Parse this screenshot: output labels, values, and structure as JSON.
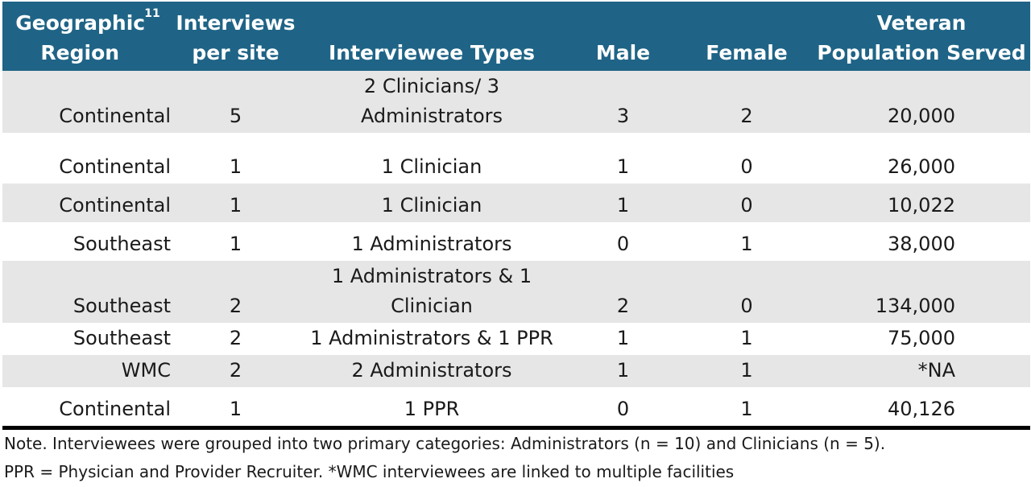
{
  "table": {
    "headers": {
      "region": "Geographic Region",
      "region_sup": "11",
      "interviews": "Interviews per site",
      "types": "Interviewee Types",
      "male": "Male",
      "female": "Female",
      "population": "Veteran Population Served"
    },
    "rows": [
      {
        "region": "Continental",
        "interviews": "5",
        "types": "2 Clinicians/ 3 Administrators",
        "male": "3",
        "female": "2",
        "population": "20,000"
      },
      {
        "region": "Continental",
        "interviews": "1",
        "types": "1 Clinician",
        "male": "1",
        "female": "0",
        "population": "26,000"
      },
      {
        "region": "Continental",
        "interviews": "1",
        "types": "1 Clinician",
        "male": "1",
        "female": "0",
        "population": "10,022"
      },
      {
        "region": "Southeast",
        "interviews": "1",
        "types": "1 Administrators",
        "male": "0",
        "female": "1",
        "population": "38,000"
      },
      {
        "region": "Southeast",
        "interviews": "2",
        "types": "1 Administrators & 1 Clinician",
        "male": "2",
        "female": "0",
        "population": "134,000"
      },
      {
        "region": "Southeast",
        "interviews": "2",
        "types": "1 Administrators & 1 PPR",
        "male": "1",
        "female": "1",
        "population": "75,000"
      },
      {
        "region": "WMC",
        "interviews": "2",
        "types": "2 Administrators",
        "male": "1",
        "female": "1",
        "population": "*NA"
      },
      {
        "region": "Continental",
        "interviews": "1",
        "types": "1 PPR",
        "male": "0",
        "female": "1",
        "population": "40,126"
      }
    ]
  },
  "notes": {
    "line1": "Note. Interviewees were grouped into two primary categories: Administrators (n = 10) and Clinicians (n = 5).",
    "line2": "PPR = Physician and Provider Recruiter. *WMC interviewees are linked to multiple facilities"
  },
  "colors": {
    "header_bg": "#1f6486",
    "shade_row": "#e6e6e6"
  }
}
